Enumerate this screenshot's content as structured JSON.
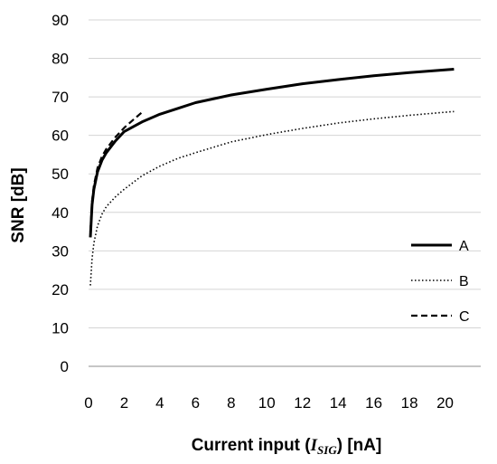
{
  "chart_data": {
    "type": "line",
    "title": "",
    "xlabel": {
      "prefix": "Current input (",
      "var_main": "I",
      "var_sub": "SIG",
      "suffix": ") [nA]"
    },
    "ylabel": "SNR [dB]",
    "xlim": [
      0,
      22
    ],
    "ylim": [
      0,
      90
    ],
    "x_ticks": [
      0,
      2,
      4,
      6,
      8,
      10,
      12,
      14,
      16,
      18,
      20
    ],
    "y_ticks": [
      0,
      10,
      20,
      30,
      40,
      50,
      60,
      70,
      80,
      90
    ],
    "grid": {
      "horizontal": true,
      "vertical": false
    },
    "legend_position": "right",
    "series": [
      {
        "name": "A",
        "style": "solid",
        "color": "#000000",
        "x": [
          0.1,
          0.15,
          0.2,
          0.3,
          0.5,
          0.75,
          1,
          1.5,
          2,
          3,
          4,
          5,
          6,
          8,
          10,
          12,
          14,
          16,
          18,
          20,
          20.5
        ],
        "y": [
          33.5,
          38,
          42,
          46,
          50.5,
          53.5,
          55.5,
          58.5,
          61,
          63.5,
          65.5,
          67,
          68.5,
          70.5,
          72,
          73.4,
          74.5,
          75.5,
          76.3,
          77,
          77.2
        ]
      },
      {
        "name": "B",
        "style": "dotted",
        "color": "#000000",
        "x": [
          0.1,
          0.2,
          0.3,
          0.5,
          0.75,
          1,
          1.5,
          2,
          3,
          4,
          5,
          6,
          8,
          10,
          12,
          14,
          16,
          18,
          20,
          20.5
        ],
        "y": [
          21,
          28,
          32,
          36.5,
          39.5,
          41.5,
          44,
          46,
          49.5,
          52,
          54,
          55.5,
          58.3,
          60.2,
          61.8,
          63.2,
          64.3,
          65.2,
          66,
          66.2
        ]
      },
      {
        "name": "C",
        "style": "dashed",
        "color": "#000000",
        "x": [
          0.1,
          0.15,
          0.2,
          0.3,
          0.5,
          0.75,
          1,
          1.5,
          2,
          2.5,
          3
        ],
        "y": [
          35,
          39,
          43,
          47,
          51.5,
          54.5,
          56.5,
          59.5,
          62,
          64,
          66
        ]
      }
    ]
  }
}
